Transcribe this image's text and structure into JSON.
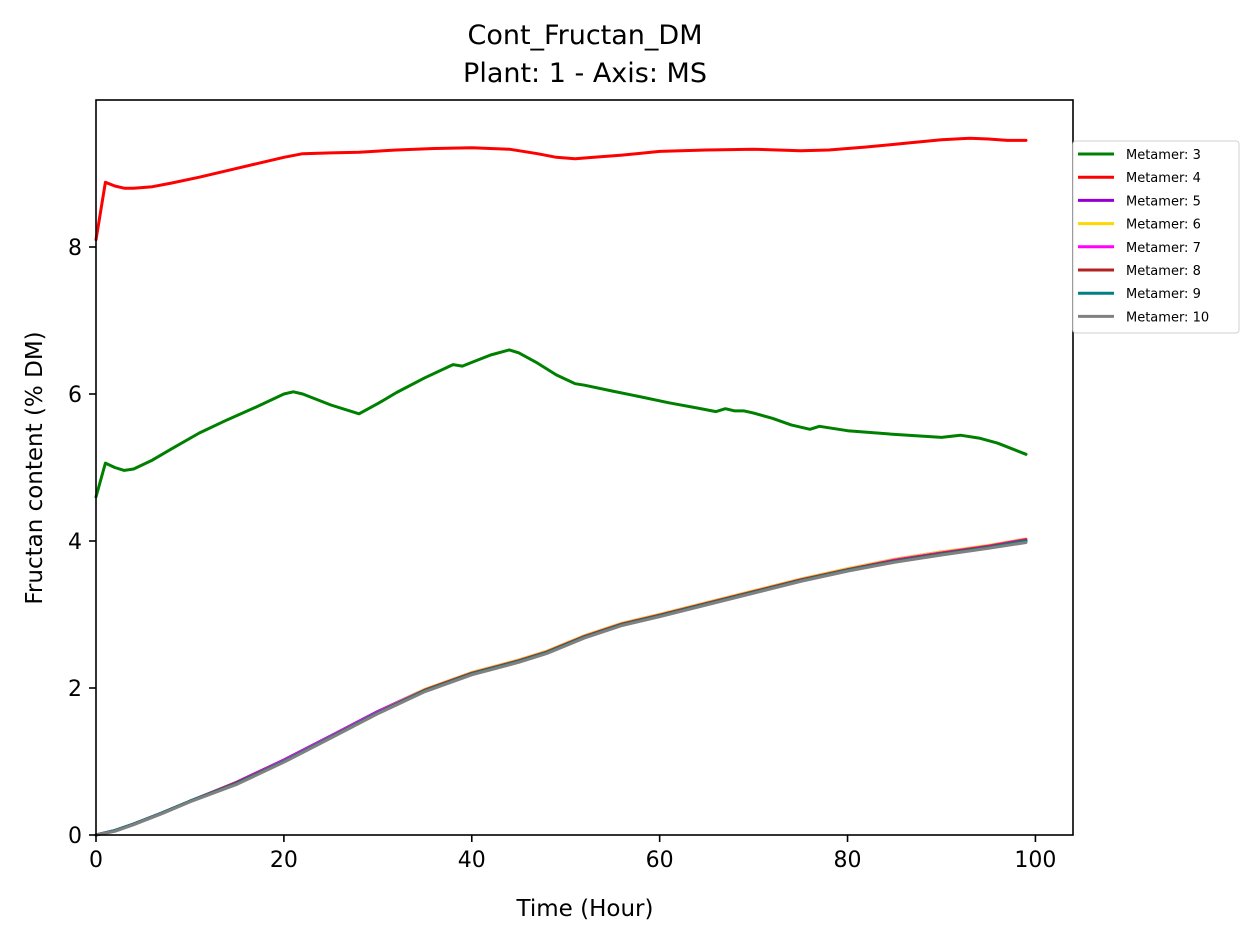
{
  "chart_data": {
    "type": "line",
    "title": "Cont_Fructan_DM",
    "subtitle": "Plant: 1 - Axis: MS",
    "xlabel": "Time (Hour)",
    "ylabel": "Fructan content (% DM)",
    "xlim": [
      0,
      104
    ],
    "ylim": [
      0,
      10
    ],
    "xticks": [
      0,
      20,
      40,
      60,
      80,
      100
    ],
    "yticks": [
      0,
      2,
      4,
      6,
      8
    ],
    "grid": false,
    "legend_position": "right-outside-top",
    "series": [
      {
        "name": "Metamer: 3",
        "color": "#008000",
        "x": [
          0,
          1,
          2,
          3,
          4,
          6,
          8,
          11,
          14,
          17,
          20,
          21,
          22,
          25,
          28,
          30,
          32,
          35,
          38,
          39,
          40,
          42,
          44,
          45,
          47,
          49,
          51,
          52,
          55,
          58,
          61,
          64,
          66,
          67,
          68,
          69,
          70,
          72,
          74,
          76,
          77,
          80,
          85,
          90,
          92,
          94,
          96,
          99
        ],
        "y": [
          4.6,
          5.06,
          5.0,
          4.96,
          4.98,
          5.1,
          5.25,
          5.47,
          5.65,
          5.82,
          6.0,
          6.03,
          6.0,
          5.85,
          5.73,
          5.87,
          6.02,
          6.22,
          6.4,
          6.38,
          6.43,
          6.53,
          6.6,
          6.56,
          6.42,
          6.26,
          6.14,
          6.12,
          6.04,
          5.96,
          5.88,
          5.81,
          5.76,
          5.8,
          5.77,
          5.77,
          5.74,
          5.67,
          5.58,
          5.52,
          5.56,
          5.5,
          5.45,
          5.41,
          5.44,
          5.4,
          5.33,
          5.18
        ]
      },
      {
        "name": "Metamer: 4",
        "color": "#ff0000",
        "x": [
          0,
          1,
          2,
          3,
          4,
          6,
          8,
          11,
          14,
          17,
          20,
          22,
          25,
          28,
          32,
          36,
          40,
          44,
          47,
          49,
          51,
          53,
          56,
          60,
          65,
          70,
          75,
          78,
          82,
          86,
          90,
          93,
          95,
          97,
          99
        ],
        "y": [
          8.1,
          8.88,
          8.83,
          8.8,
          8.8,
          8.82,
          8.87,
          8.95,
          9.04,
          9.13,
          9.22,
          9.27,
          9.28,
          9.29,
          9.32,
          9.34,
          9.35,
          9.33,
          9.27,
          9.22,
          9.2,
          9.22,
          9.25,
          9.3,
          9.32,
          9.33,
          9.31,
          9.32,
          9.36,
          9.41,
          9.46,
          9.48,
          9.47,
          9.45,
          9.45
        ]
      },
      {
        "name": "Metamer: 5",
        "color": "#9400d3",
        "x": [
          0,
          2,
          4,
          7,
          10,
          15,
          20,
          25,
          30,
          35,
          40,
          45,
          48,
          52,
          56,
          60,
          65,
          70,
          75,
          80,
          85,
          90,
          95,
          99
        ],
        "y": [
          0.0,
          0.06,
          0.15,
          0.3,
          0.46,
          0.72,
          1.02,
          1.35,
          1.68,
          1.98,
          2.21,
          2.38,
          2.5,
          2.71,
          2.88,
          3.0,
          3.16,
          3.32,
          3.48,
          3.62,
          3.75,
          3.85,
          3.93,
          4.02
        ]
      },
      {
        "name": "Metamer: 6",
        "color": "#ffd700",
        "x": [
          0,
          2,
          4,
          7,
          10,
          15,
          20,
          25,
          30,
          35,
          40,
          45,
          48,
          52,
          56,
          60,
          65,
          70,
          75,
          80,
          85,
          90,
          95,
          99
        ],
        "y": [
          0.0,
          0.06,
          0.15,
          0.3,
          0.46,
          0.71,
          1.01,
          1.34,
          1.67,
          1.98,
          2.21,
          2.38,
          2.5,
          2.71,
          2.88,
          3.0,
          3.16,
          3.32,
          3.48,
          3.62,
          3.75,
          3.85,
          3.94,
          4.03
        ]
      },
      {
        "name": "Metamer: 7",
        "color": "#ff00ff",
        "x": [
          0,
          2,
          4,
          7,
          10,
          15,
          20,
          25,
          30,
          35,
          40,
          45,
          48,
          52,
          56,
          60,
          65,
          70,
          75,
          80,
          85,
          90,
          95,
          99
        ],
        "y": [
          0.0,
          0.06,
          0.15,
          0.3,
          0.46,
          0.71,
          1.01,
          1.34,
          1.67,
          1.97,
          2.2,
          2.37,
          2.49,
          2.7,
          2.87,
          2.99,
          3.15,
          3.31,
          3.47,
          3.61,
          3.74,
          3.84,
          3.93,
          4.02
        ]
      },
      {
        "name": "Metamer: 8",
        "color": "#b22222",
        "x": [
          0,
          2,
          4,
          7,
          10,
          15,
          20,
          25,
          30,
          35,
          40,
          45,
          48,
          52,
          56,
          60,
          65,
          70,
          75,
          80,
          85,
          90,
          95,
          99
        ],
        "y": [
          0.0,
          0.06,
          0.15,
          0.3,
          0.46,
          0.71,
          1.0,
          1.33,
          1.66,
          1.97,
          2.2,
          2.37,
          2.49,
          2.7,
          2.87,
          2.99,
          3.15,
          3.31,
          3.47,
          3.61,
          3.73,
          3.83,
          3.92,
          4.01
        ]
      },
      {
        "name": "Metamer: 9",
        "color": "#008080",
        "x": [
          0,
          2,
          4,
          7,
          10,
          15,
          20,
          25,
          30,
          35,
          40,
          45,
          48,
          52,
          56,
          60,
          65,
          70,
          75,
          80,
          85,
          90,
          95,
          99
        ],
        "y": [
          0.0,
          0.06,
          0.15,
          0.3,
          0.46,
          0.7,
          1.0,
          1.33,
          1.66,
          1.96,
          2.19,
          2.36,
          2.48,
          2.69,
          2.86,
          2.98,
          3.14,
          3.3,
          3.46,
          3.6,
          3.72,
          3.82,
          3.91,
          4.0
        ]
      },
      {
        "name": "Metamer: 10",
        "color": "#808080",
        "x": [
          0,
          2,
          4,
          7,
          10,
          15,
          20,
          25,
          30,
          35,
          40,
          45,
          48,
          52,
          56,
          60,
          65,
          70,
          75,
          80,
          85,
          90,
          95,
          99
        ],
        "y": [
          0.0,
          0.05,
          0.14,
          0.29,
          0.45,
          0.69,
          0.99,
          1.32,
          1.65,
          1.95,
          2.18,
          2.35,
          2.47,
          2.68,
          2.85,
          2.97,
          3.13,
          3.29,
          3.45,
          3.59,
          3.71,
          3.81,
          3.9,
          3.98
        ]
      }
    ]
  }
}
